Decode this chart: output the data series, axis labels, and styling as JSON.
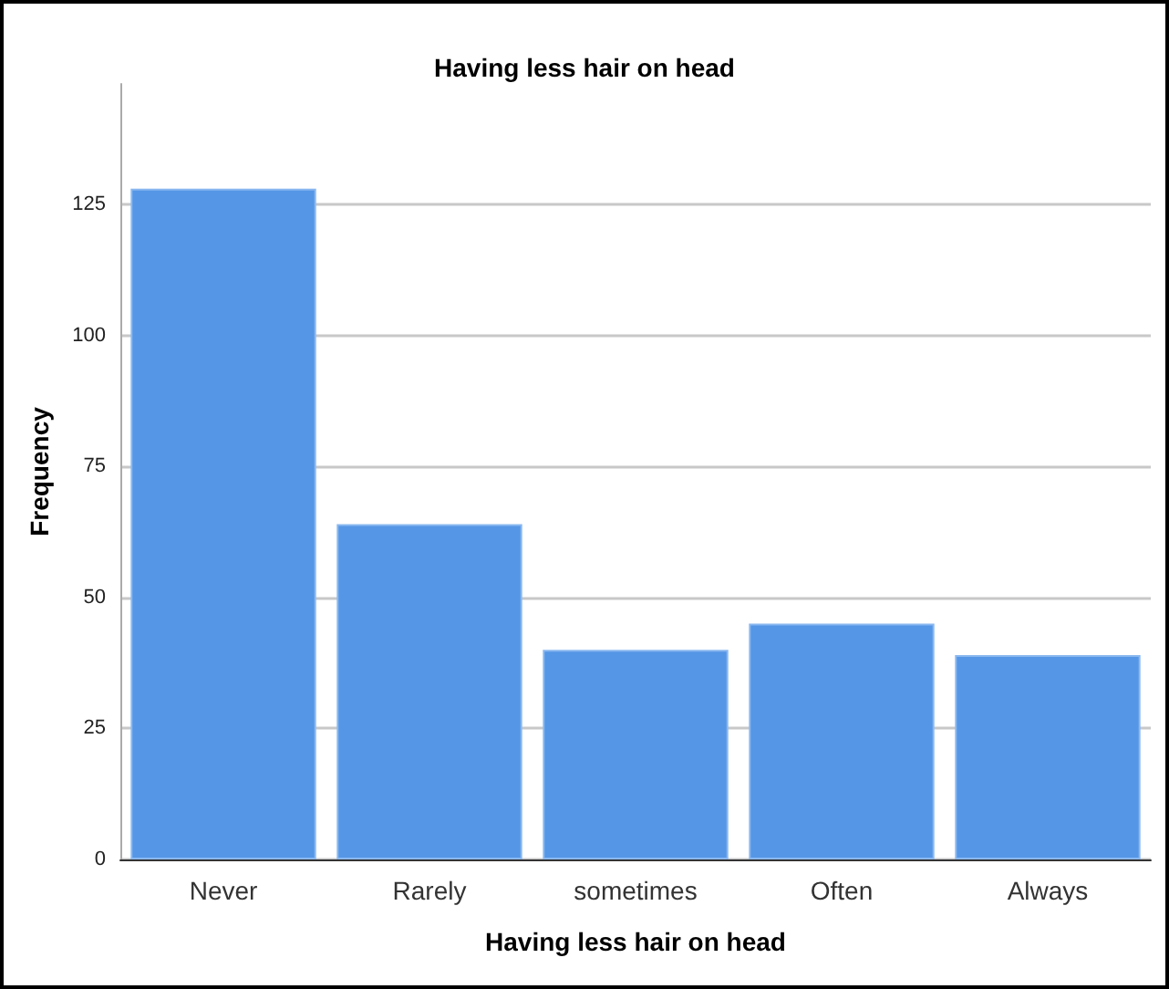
{
  "chart_data": {
    "type": "bar",
    "title": "Having less hair on head",
    "xlabel": "Having less hair on head",
    "ylabel": "Frequency",
    "categories": [
      "Never",
      "Rarely",
      "sometimes",
      "Often",
      "Always"
    ],
    "values": [
      128,
      64,
      40,
      45,
      39
    ],
    "color": "#5596e6",
    "ylim": [
      0,
      148
    ],
    "yticks": [
      0,
      25,
      50,
      75,
      100,
      125
    ],
    "grid": "y"
  }
}
